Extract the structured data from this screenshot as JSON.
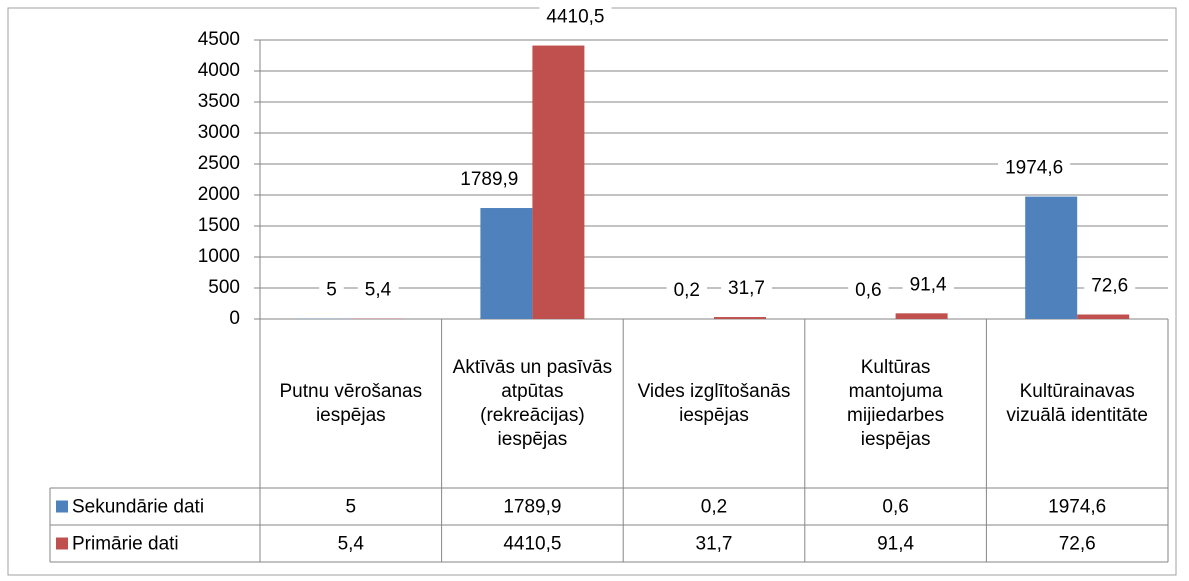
{
  "chart_data": {
    "type": "bar",
    "categories": [
      "Putnu vērošanas iespējas",
      "Aktīvās un pasīvās atpūtas (rekreācijas) iespējas",
      "Vides izglītošanās iespējas",
      "Kultūras mantojuma mijiedarbes iespējas",
      "Kultūrainavas vizuālā identitāte"
    ],
    "series": [
      {
        "name": "Sekundārie dati",
        "color": "#4f81bd",
        "values": [
          5,
          1789.9,
          0.2,
          0.6,
          1974.6
        ],
        "value_labels": [
          "5",
          "1789,9",
          "0,2",
          "0,6",
          "1974,6"
        ]
      },
      {
        "name": "Primārie dati",
        "color": "#c0504d",
        "values": [
          5.4,
          4410.5,
          31.7,
          91.4,
          72.6
        ],
        "value_labels": [
          "5,4",
          "4410,5",
          "31,7",
          "91,4",
          "72,6"
        ]
      }
    ],
    "ylim": [
      0,
      4500
    ],
    "yticks": [
      0,
      500,
      1000,
      1500,
      2000,
      2500,
      3000,
      3500,
      4000,
      4500
    ],
    "grid": true,
    "legend": "table"
  }
}
